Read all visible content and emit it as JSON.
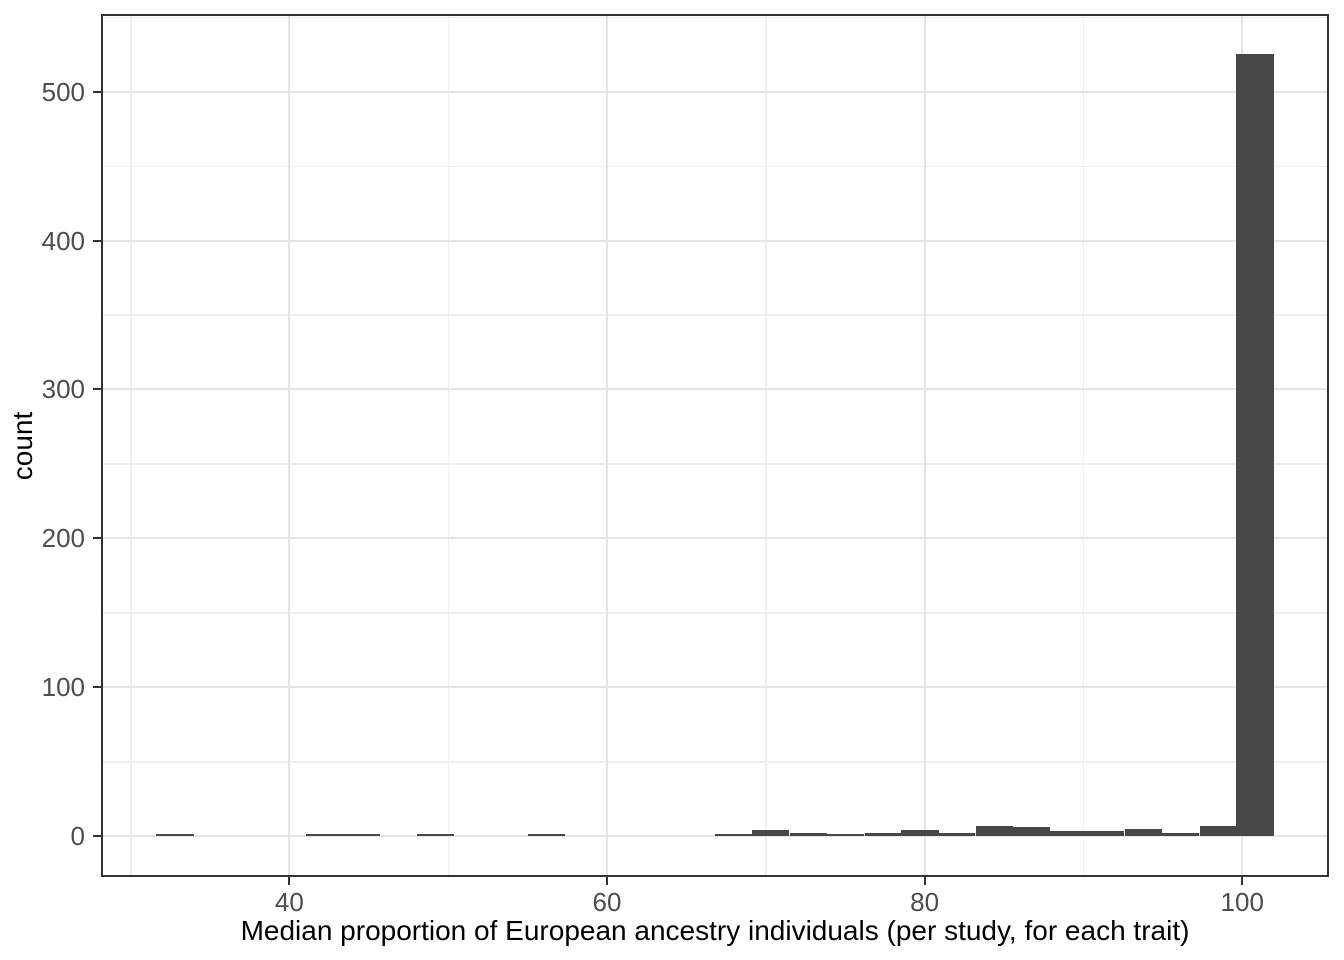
{
  "chart_data": {
    "type": "histogram",
    "title": "",
    "xlabel": "Median proportion of European ancestry individuals (per study, for each trait)",
    "ylabel": "count",
    "x_ticks": [
      40,
      60,
      80,
      100
    ],
    "y_ticks": [
      0,
      100,
      200,
      300,
      400,
      500
    ],
    "x_minor_ticks": [
      30,
      50,
      70,
      90
    ],
    "y_minor_ticks": [
      50,
      150,
      250,
      350,
      450,
      550
    ],
    "xlim": [
      28.2,
      105.4
    ],
    "ylim": [
      -26.9,
      551.5
    ],
    "grid": true,
    "legend_position": "none",
    "binwidth": 2.35,
    "bins": [
      {
        "center": 32.8,
        "count": 1
      },
      {
        "center": 42.2,
        "count": 1
      },
      {
        "center": 44.5,
        "count": 1
      },
      {
        "center": 49.2,
        "count": 1
      },
      {
        "center": 56.2,
        "count": 1
      },
      {
        "center": 68.0,
        "count": 1
      },
      {
        "center": 70.3,
        "count": 4
      },
      {
        "center": 72.7,
        "count": 2
      },
      {
        "center": 75.0,
        "count": 1
      },
      {
        "center": 77.4,
        "count": 2
      },
      {
        "center": 79.7,
        "count": 4
      },
      {
        "center": 82.0,
        "count": 2
      },
      {
        "center": 84.4,
        "count": 7
      },
      {
        "center": 86.7,
        "count": 6
      },
      {
        "center": 89.1,
        "count": 3
      },
      {
        "center": 91.4,
        "count": 3
      },
      {
        "center": 93.8,
        "count": 5
      },
      {
        "center": 96.1,
        "count": 2
      },
      {
        "center": 98.5,
        "count": 7
      },
      {
        "center": 100.8,
        "count": 525
      }
    ],
    "colors": {
      "bar_fill": "#474747",
      "grid_major": "#e5e5e5",
      "grid_minor": "#efefef",
      "panel_border": "#333333",
      "tick_mark": "#333333",
      "tick_label": "#4d4d4d",
      "axis_title": "#000000",
      "background": "#ffffff"
    }
  }
}
